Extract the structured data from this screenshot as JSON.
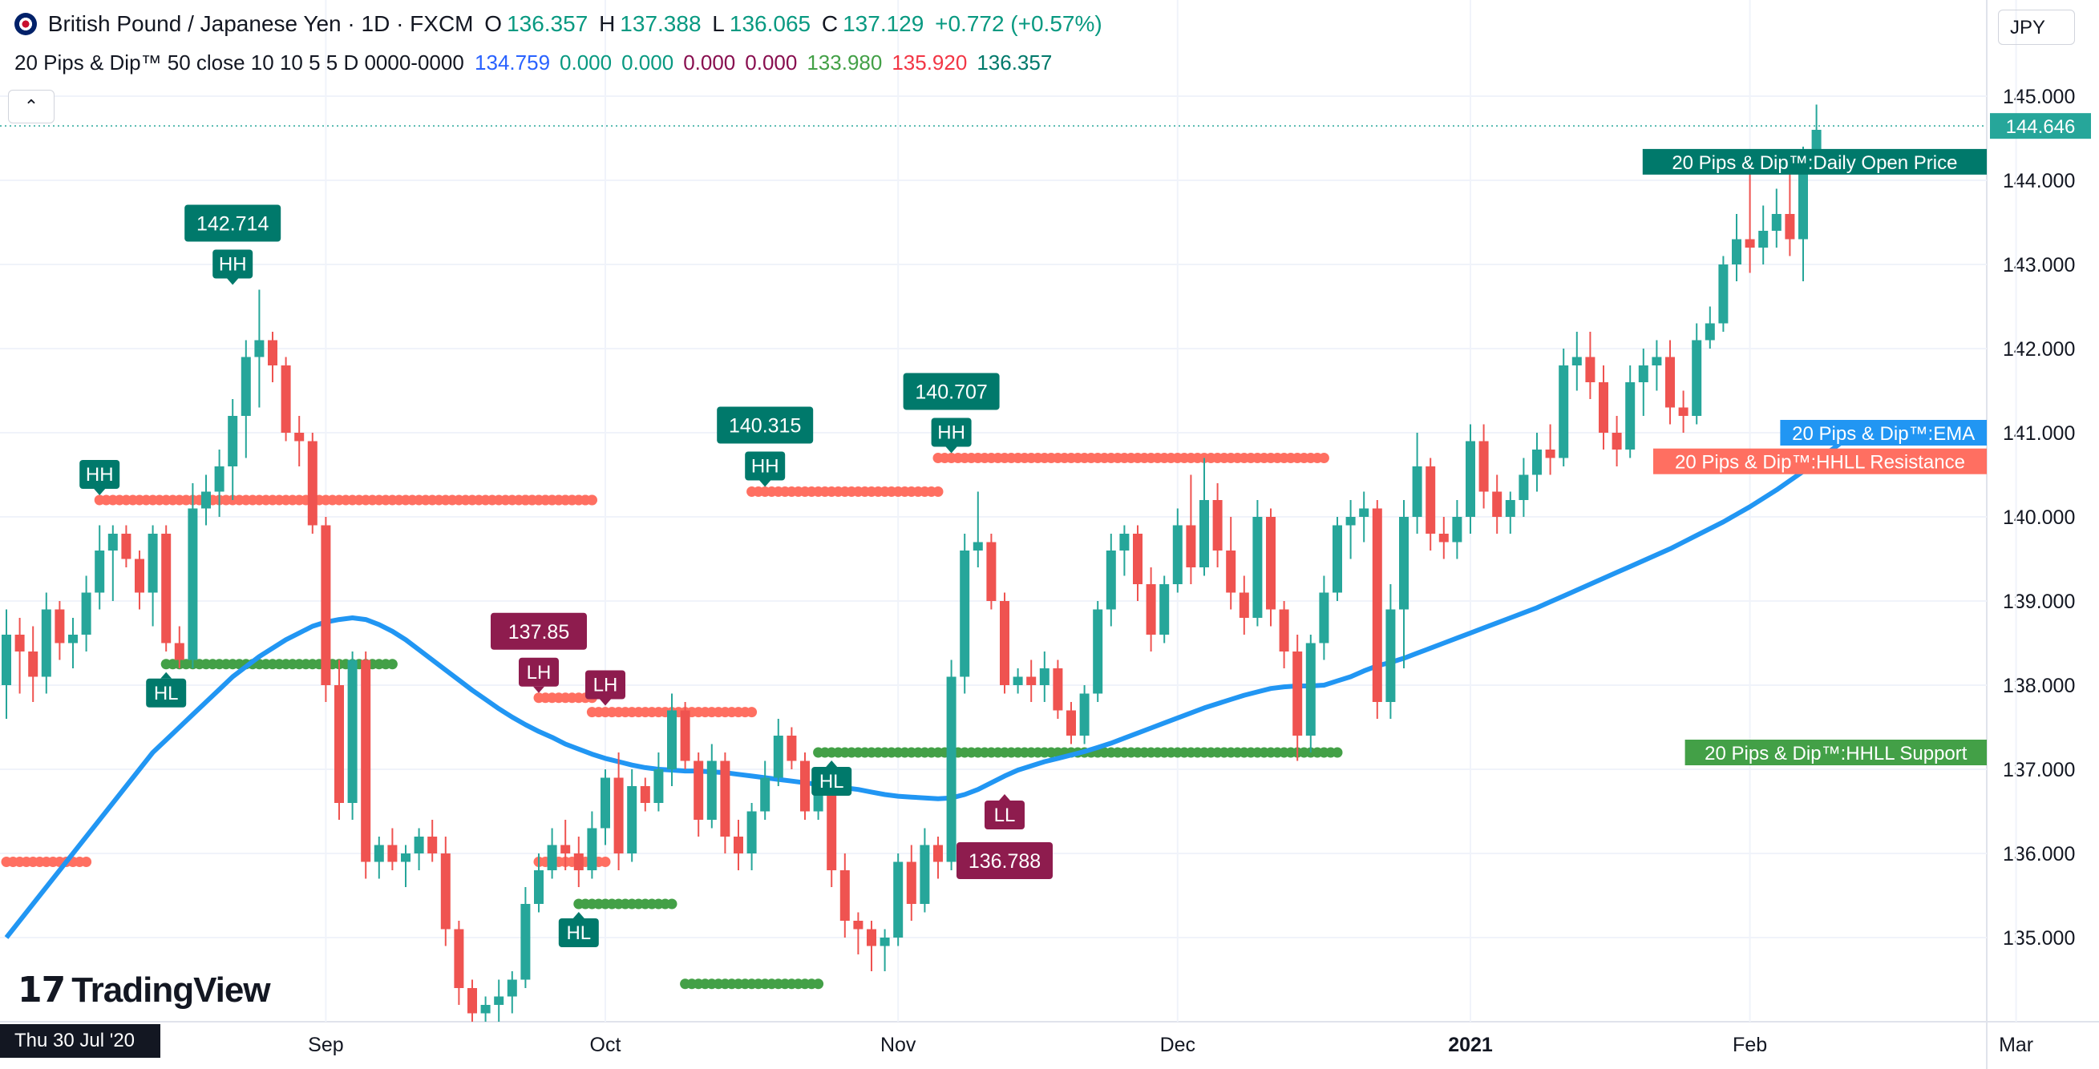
{
  "header": {
    "symbol": "British Pound / Japanese Yen · 1D · FXCM",
    "o_label": "O",
    "o_value": "136.357",
    "h_label": "H",
    "h_value": "137.388",
    "l_label": "L",
    "l_value": "136.065",
    "c_label": "C",
    "c_value": "137.129",
    "change": "+0.772 (+0.57%)",
    "indicator_name": "20 Pips & Dip™ 50 close 10 10 5 5 D 0000-0000",
    "indicator_values": [
      {
        "text": "134.759",
        "color": "#2962ff"
      },
      {
        "text": "0.000",
        "color": "#089981"
      },
      {
        "text": "0.000",
        "color": "#089981"
      },
      {
        "text": "0.000",
        "color": "#880e4f"
      },
      {
        "text": "0.000",
        "color": "#880e4f"
      },
      {
        "text": "133.980",
        "color": "#43a047"
      },
      {
        "text": "135.920",
        "color": "#f23645"
      },
      {
        "text": "136.357",
        "color": "#00796b"
      }
    ],
    "collapse_icon": "chevron-up-icon"
  },
  "currency_label": "JPY",
  "crosshair_date": "Thu 30 Jul '20",
  "logo_text": "TradingView",
  "colors": {
    "bull": "#26a69a",
    "bear": "#ef5350",
    "ema": "#2196f3",
    "resistance": "#ff6f61",
    "support": "#43a047",
    "hh_box": "#00796b",
    "ll_box": "#8e1c4e",
    "price_tag": "#26a69a"
  },
  "chart_data": {
    "type": "candlestick",
    "title": "British Pound / Japanese Yen · 1D · FXCM",
    "ylim": [
      134.0,
      145.6
    ],
    "yticks": [
      "145.000",
      "144.000",
      "143.000",
      "142.000",
      "141.000",
      "140.000",
      "139.000",
      "138.000",
      "137.000",
      "136.000",
      "135.000"
    ],
    "xticks": [
      {
        "label": "Sep",
        "index": 24
      },
      {
        "label": "Oct",
        "index": 45
      },
      {
        "label": "Nov",
        "index": 67
      },
      {
        "label": "Dec",
        "index": 88
      },
      {
        "label": "2021",
        "index": 110
      },
      {
        "label": "Feb",
        "index": 131
      },
      {
        "label": "Mar",
        "index": 151
      }
    ],
    "candles": [
      [
        138.0,
        138.9,
        137.6,
        138.6
      ],
      [
        138.6,
        138.8,
        137.9,
        138.4
      ],
      [
        138.4,
        138.7,
        137.8,
        138.1
      ],
      [
        138.1,
        139.1,
        137.9,
        138.9
      ],
      [
        138.9,
        139.0,
        138.3,
        138.5
      ],
      [
        138.5,
        138.8,
        138.2,
        138.6
      ],
      [
        138.6,
        139.3,
        138.4,
        139.1
      ],
      [
        139.1,
        139.9,
        138.9,
        139.6
      ],
      [
        139.6,
        139.9,
        139.0,
        139.8
      ],
      [
        139.8,
        139.9,
        139.4,
        139.5
      ],
      [
        139.5,
        139.6,
        138.9,
        139.1
      ],
      [
        139.1,
        139.9,
        138.7,
        139.8
      ],
      [
        139.8,
        139.9,
        138.4,
        138.5
      ],
      [
        138.5,
        138.7,
        138.2,
        138.3
      ],
      [
        138.3,
        140.4,
        138.2,
        140.1
      ],
      [
        140.1,
        140.5,
        139.9,
        140.3
      ],
      [
        140.3,
        140.8,
        140.0,
        140.6
      ],
      [
        140.6,
        141.4,
        140.2,
        141.2
      ],
      [
        141.2,
        142.1,
        140.7,
        141.9
      ],
      [
        141.9,
        142.7,
        141.3,
        142.1
      ],
      [
        142.1,
        142.2,
        141.6,
        141.8
      ],
      [
        141.8,
        141.9,
        140.9,
        141.0
      ],
      [
        141.0,
        141.2,
        140.6,
        140.9
      ],
      [
        140.9,
        141.0,
        139.8,
        139.9
      ],
      [
        139.9,
        140.0,
        137.8,
        138.0
      ],
      [
        138.0,
        138.3,
        136.4,
        136.6
      ],
      [
        136.6,
        138.4,
        136.4,
        138.3
      ],
      [
        138.3,
        138.4,
        135.7,
        135.9
      ],
      [
        135.9,
        136.2,
        135.7,
        136.1
      ],
      [
        136.1,
        136.3,
        135.8,
        135.9
      ],
      [
        135.9,
        136.1,
        135.6,
        136.0
      ],
      [
        136.0,
        136.3,
        135.8,
        136.2
      ],
      [
        136.2,
        136.4,
        135.9,
        136.0
      ],
      [
        136.0,
        136.2,
        134.9,
        135.1
      ],
      [
        135.1,
        135.2,
        134.2,
        134.4
      ],
      [
        134.4,
        134.5,
        134.0,
        134.1
      ],
      [
        134.1,
        134.3,
        134.0,
        134.2
      ],
      [
        134.2,
        134.5,
        134.0,
        134.3
      ],
      [
        134.3,
        134.6,
        134.1,
        134.5
      ],
      [
        134.5,
        135.6,
        134.4,
        135.4
      ],
      [
        135.4,
        136.0,
        135.3,
        135.8
      ],
      [
        135.8,
        136.3,
        135.7,
        136.1
      ],
      [
        136.1,
        136.4,
        135.8,
        136.0
      ],
      [
        136.0,
        136.2,
        135.6,
        135.8
      ],
      [
        135.8,
        136.5,
        135.7,
        136.3
      ],
      [
        136.3,
        137.0,
        136.1,
        136.9
      ],
      [
        136.9,
        137.2,
        135.8,
        136.0
      ],
      [
        136.0,
        137.0,
        135.9,
        136.8
      ],
      [
        136.8,
        136.9,
        136.5,
        136.6
      ],
      [
        136.6,
        137.2,
        136.5,
        137.0
      ],
      [
        137.0,
        137.9,
        136.8,
        137.7
      ],
      [
        137.7,
        137.8,
        137.0,
        137.1
      ],
      [
        137.1,
        137.2,
        136.2,
        136.4
      ],
      [
        136.4,
        137.3,
        136.3,
        137.1
      ],
      [
        137.1,
        137.2,
        136.0,
        136.2
      ],
      [
        136.2,
        136.4,
        135.8,
        136.0
      ],
      [
        136.0,
        136.6,
        135.8,
        136.5
      ],
      [
        136.5,
        137.1,
        136.4,
        136.9
      ],
      [
        136.9,
        137.6,
        136.8,
        137.4
      ],
      [
        137.4,
        137.5,
        137.0,
        137.1
      ],
      [
        137.1,
        137.2,
        136.4,
        136.5
      ],
      [
        136.5,
        136.9,
        136.4,
        136.8
      ],
      [
        136.8,
        136.9,
        135.6,
        135.8
      ],
      [
        135.8,
        136.0,
        135.0,
        135.2
      ],
      [
        135.2,
        135.3,
        134.8,
        135.1
      ],
      [
        135.1,
        135.2,
        134.6,
        134.9
      ],
      [
        134.9,
        135.1,
        134.6,
        135.0
      ],
      [
        135.0,
        136.0,
        134.9,
        135.9
      ],
      [
        135.9,
        136.1,
        135.2,
        135.4
      ],
      [
        135.4,
        136.3,
        135.3,
        136.1
      ],
      [
        136.1,
        136.2,
        135.7,
        135.9
      ],
      [
        135.9,
        138.3,
        135.8,
        138.1
      ],
      [
        138.1,
        139.8,
        137.9,
        139.6
      ],
      [
        139.6,
        140.3,
        139.4,
        139.7
      ],
      [
        139.7,
        139.8,
        138.9,
        139.0
      ],
      [
        139.0,
        139.1,
        137.9,
        138.0
      ],
      [
        138.0,
        138.2,
        137.9,
        138.1
      ],
      [
        138.1,
        138.3,
        137.8,
        138.0
      ],
      [
        138.0,
        138.4,
        137.8,
        138.2
      ],
      [
        138.2,
        138.3,
        137.6,
        137.7
      ],
      [
        137.7,
        137.8,
        137.3,
        137.4
      ],
      [
        137.4,
        138.0,
        137.3,
        137.9
      ],
      [
        137.9,
        139.0,
        137.8,
        138.9
      ],
      [
        138.9,
        139.8,
        138.7,
        139.6
      ],
      [
        139.6,
        139.9,
        139.3,
        139.8
      ],
      [
        139.8,
        139.9,
        139.0,
        139.2
      ],
      [
        139.2,
        139.4,
        138.4,
        138.6
      ],
      [
        138.6,
        139.3,
        138.5,
        139.2
      ],
      [
        139.2,
        140.1,
        139.1,
        139.9
      ],
      [
        139.9,
        140.5,
        139.2,
        139.4
      ],
      [
        139.4,
        140.7,
        139.3,
        140.2
      ],
      [
        140.2,
        140.4,
        139.4,
        139.6
      ],
      [
        139.6,
        140.0,
        138.9,
        139.1
      ],
      [
        139.1,
        139.3,
        138.6,
        138.8
      ],
      [
        138.8,
        140.2,
        138.7,
        140.0
      ],
      [
        140.0,
        140.1,
        138.7,
        138.9
      ],
      [
        138.9,
        139.0,
        138.2,
        138.4
      ],
      [
        138.4,
        138.6,
        137.1,
        137.4
      ],
      [
        137.4,
        138.6,
        137.2,
        138.5
      ],
      [
        138.5,
        139.3,
        138.3,
        139.1
      ],
      [
        139.1,
        140.0,
        139.0,
        139.9
      ],
      [
        139.9,
        140.2,
        139.5,
        140.0
      ],
      [
        140.0,
        140.3,
        139.7,
        140.1
      ],
      [
        140.1,
        140.2,
        137.6,
        137.8
      ],
      [
        137.8,
        139.2,
        137.6,
        138.9
      ],
      [
        138.9,
        140.2,
        138.2,
        140.0
      ],
      [
        140.0,
        141.0,
        139.8,
        140.6
      ],
      [
        140.6,
        140.7,
        139.6,
        139.8
      ],
      [
        139.8,
        140.0,
        139.5,
        139.7
      ],
      [
        139.7,
        140.2,
        139.5,
        140.0
      ],
      [
        140.0,
        141.1,
        139.8,
        140.9
      ],
      [
        140.9,
        141.1,
        140.1,
        140.3
      ],
      [
        140.3,
        140.5,
        139.8,
        140.0
      ],
      [
        140.0,
        140.3,
        139.8,
        140.2
      ],
      [
        140.2,
        140.7,
        140.0,
        140.5
      ],
      [
        140.5,
        141.0,
        140.3,
        140.8
      ],
      [
        140.8,
        141.1,
        140.5,
        140.7
      ],
      [
        140.7,
        142.0,
        140.6,
        141.8
      ],
      [
        141.8,
        142.2,
        141.5,
        141.9
      ],
      [
        141.9,
        142.2,
        141.4,
        141.6
      ],
      [
        141.6,
        141.8,
        140.8,
        141.0
      ],
      [
        141.0,
        141.2,
        140.6,
        140.8
      ],
      [
        140.8,
        141.8,
        140.7,
        141.6
      ],
      [
        141.6,
        142.0,
        141.2,
        141.8
      ],
      [
        141.8,
        142.1,
        141.5,
        141.9
      ],
      [
        141.9,
        142.1,
        141.1,
        141.3
      ],
      [
        141.3,
        141.5,
        141.0,
        141.2
      ],
      [
        141.2,
        142.3,
        141.1,
        142.1
      ],
      [
        142.1,
        142.5,
        142.0,
        142.3
      ],
      [
        142.3,
        143.1,
        142.2,
        143.0
      ],
      [
        143.0,
        143.6,
        142.8,
        143.3
      ],
      [
        143.3,
        144.1,
        142.9,
        143.2
      ],
      [
        143.2,
        143.7,
        143.0,
        143.4
      ],
      [
        143.4,
        143.9,
        143.2,
        143.6
      ],
      [
        143.6,
        144.1,
        143.1,
        143.3
      ],
      [
        143.3,
        144.4,
        142.8,
        144.3
      ],
      [
        144.3,
        144.9,
        144.2,
        144.6
      ]
    ],
    "ema": [
      135.0,
      135.2,
      135.4,
      135.6,
      135.8,
      136.0,
      136.2,
      136.4,
      136.6,
      136.8,
      137.0,
      137.2,
      137.35,
      137.5,
      137.65,
      137.8,
      137.95,
      138.1,
      138.22,
      138.34,
      138.44,
      138.54,
      138.62,
      138.7,
      138.75,
      138.78,
      138.8,
      138.78,
      138.72,
      138.64,
      138.54,
      138.42,
      138.3,
      138.18,
      138.06,
      137.94,
      137.83,
      137.72,
      137.62,
      137.53,
      137.45,
      137.38,
      137.3,
      137.24,
      137.18,
      137.13,
      137.09,
      137.05,
      137.02,
      137.0,
      136.99,
      136.98,
      136.98,
      136.97,
      136.96,
      136.94,
      136.92,
      136.9,
      136.88,
      136.86,
      136.84,
      136.82,
      136.8,
      136.78,
      136.76,
      136.73,
      136.7,
      136.68,
      136.67,
      136.66,
      136.65,
      136.66,
      136.7,
      136.76,
      136.84,
      136.92,
      136.99,
      137.04,
      137.09,
      137.13,
      137.17,
      137.21,
      137.26,
      137.31,
      137.37,
      137.43,
      137.49,
      137.55,
      137.61,
      137.67,
      137.73,
      137.78,
      137.83,
      137.88,
      137.92,
      137.96,
      137.98,
      137.99,
      137.99,
      138.0,
      138.05,
      138.1,
      138.17,
      138.23,
      138.27,
      138.32,
      138.38,
      138.44,
      138.5,
      138.56,
      138.62,
      138.68,
      138.74,
      138.8,
      138.86,
      138.92,
      138.99,
      139.06,
      139.13,
      139.2,
      139.27,
      139.34,
      139.41,
      139.48,
      139.55,
      139.62,
      139.7,
      139.78,
      139.86,
      139.94,
      140.03,
      140.12,
      140.22,
      140.32,
      140.43,
      140.54,
      140.66,
      140.78,
      140.9,
      141.0
    ],
    "resistance_levels": [
      {
        "start": 0,
        "end": 6,
        "value": 135.9
      },
      {
        "start": 7,
        "end": 39,
        "value": 140.2
      },
      {
        "start": 40,
        "end": 45,
        "value": 135.9
      },
      {
        "start": 39,
        "end": 44,
        "value": 140.2
      },
      {
        "start": 39,
        "end": 44,
        "value": 140.2
      },
      {
        "start": 40,
        "end": 44,
        "value": 137.85
      },
      {
        "start": 44,
        "end": 56,
        "value": 137.68
      },
      {
        "start": 56,
        "end": 70,
        "value": 140.3
      },
      {
        "start": 70,
        "end": 99,
        "value": 140.7
      }
    ],
    "support_levels": [
      {
        "start": 12,
        "end": 29,
        "value": 138.25
      },
      {
        "start": 43,
        "end": 50,
        "value": 135.4
      },
      {
        "start": 51,
        "end": 61,
        "value": 134.45
      },
      {
        "start": 61,
        "end": 100,
        "value": 137.2
      }
    ],
    "pivot_labels": [
      {
        "text": "HH",
        "index": 7,
        "value": 140.2,
        "pos": "above",
        "color": "#00796b"
      },
      {
        "text": "HH",
        "index": 17,
        "value": 142.7,
        "pos": "above",
        "color": "#00796b",
        "price": "142.714"
      },
      {
        "text": "HL",
        "index": 12,
        "value": 138.25,
        "pos": "below",
        "color": "#00796b"
      },
      {
        "text": "LH",
        "index": 40,
        "value": 137.85,
        "pos": "above",
        "color": "#8e1c4e",
        "price": "137.85"
      },
      {
        "text": "LH",
        "index": 45,
        "value": 137.7,
        "pos": "above",
        "color": "#8e1c4e"
      },
      {
        "text": "HL",
        "index": 43,
        "value": 135.4,
        "pos": "below",
        "color": "#00796b"
      },
      {
        "text": "HH",
        "index": 57,
        "value": 140.3,
        "pos": "above",
        "color": "#00796b",
        "price": "140.315"
      },
      {
        "text": "HL",
        "index": 62,
        "value": 137.2,
        "pos": "below",
        "color": "#00796b"
      },
      {
        "text": "HH",
        "index": 71,
        "value": 140.7,
        "pos": "above",
        "color": "#00796b",
        "price": "140.707"
      },
      {
        "text": "LL",
        "index": 75,
        "value": 136.8,
        "pos": "below",
        "color": "#8e1c4e",
        "price": "136.788"
      }
    ],
    "right_tags": [
      {
        "text": "144.646",
        "value": 144.646,
        "color": "#26a69a"
      },
      {
        "text": "20 Pips & Dip™:Daily Open Price",
        "value": 144.22,
        "color": "#00796b"
      },
      {
        "text": "20 Pips & Dip™:EMA",
        "value": 141.0,
        "color": "#2196f3"
      },
      {
        "text": "20 Pips & Dip™:HHLL Resistance",
        "value": 140.66,
        "color": "#ff6f61"
      },
      {
        "text": "20 Pips & Dip™:HHLL Support",
        "value": 137.2,
        "color": "#43a047"
      }
    ]
  }
}
